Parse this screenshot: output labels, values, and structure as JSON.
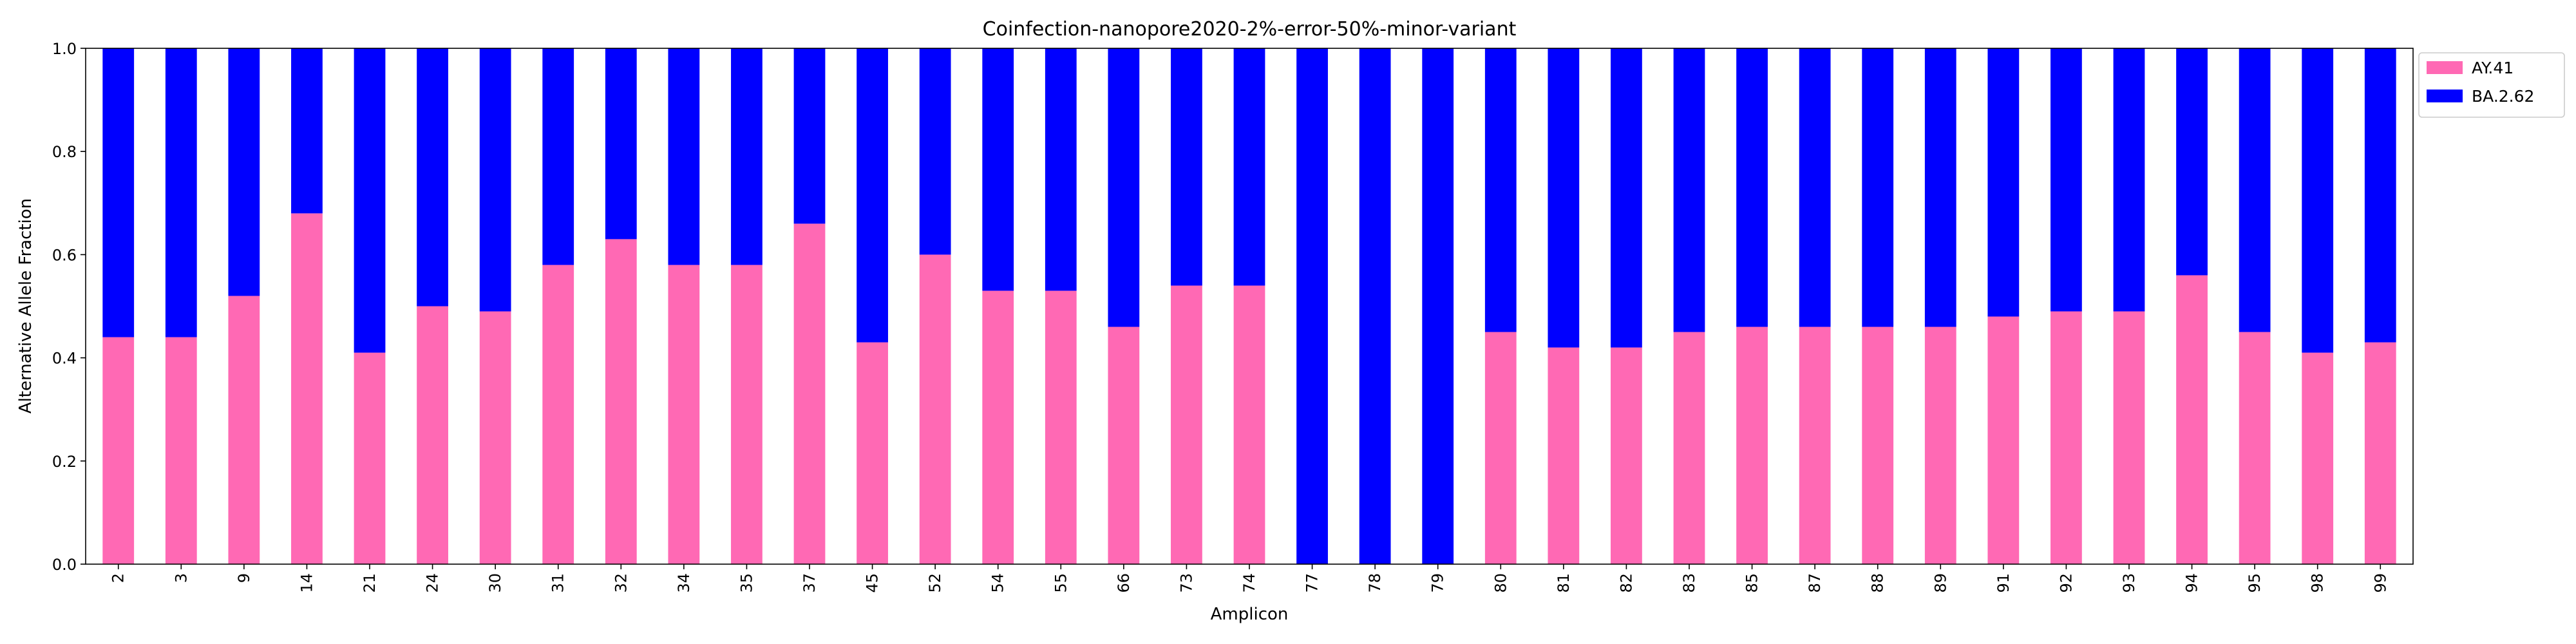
{
  "chart_data": {
    "type": "bar",
    "stacked": true,
    "title": "Coinfection-nanopore2020-2%-error-50%-minor-variant",
    "xlabel": "Amplicon",
    "ylabel": "Alternative Allele Fraction",
    "ylim": [
      0,
      1.0
    ],
    "yticks": [
      "0.0",
      "0.2",
      "0.4",
      "0.6",
      "0.8",
      "1.0"
    ],
    "legend_position": "outside-top-right",
    "grid": false,
    "categories": [
      "2",
      "3",
      "9",
      "14",
      "21",
      "24",
      "30",
      "31",
      "32",
      "34",
      "35",
      "37",
      "45",
      "52",
      "54",
      "55",
      "66",
      "73",
      "74",
      "77",
      "78",
      "79",
      "80",
      "81",
      "82",
      "83",
      "85",
      "87",
      "88",
      "89",
      "91",
      "92",
      "93",
      "94",
      "95",
      "98",
      "99"
    ],
    "series": [
      {
        "name": "AY.41",
        "color": "#ff69b4",
        "values": [
          0.44,
          0.44,
          0.52,
          0.68,
          0.41,
          0.5,
          0.49,
          0.58,
          0.63,
          0.58,
          0.58,
          0.66,
          0.43,
          0.6,
          0.53,
          0.53,
          0.46,
          0.54,
          0.54,
          0.0,
          0.0,
          0.0,
          0.45,
          0.42,
          0.42,
          0.45,
          0.46,
          0.46,
          0.46,
          0.46,
          0.48,
          0.49,
          0.49,
          0.56,
          0.45,
          0.41,
          0.43
        ]
      },
      {
        "name": "BA.2.62",
        "color": "#0000ff",
        "values": [
          0.56,
          0.56,
          0.48,
          0.32,
          0.59,
          0.5,
          0.51,
          0.42,
          0.37,
          0.42,
          0.42,
          0.34,
          0.57,
          0.4,
          0.47,
          0.47,
          0.54,
          0.46,
          0.46,
          1.0,
          1.0,
          1.0,
          0.55,
          0.58,
          0.58,
          0.55,
          0.54,
          0.54,
          0.54,
          0.54,
          0.52,
          0.51,
          0.51,
          0.44,
          0.55,
          0.59,
          0.57
        ]
      }
    ]
  }
}
